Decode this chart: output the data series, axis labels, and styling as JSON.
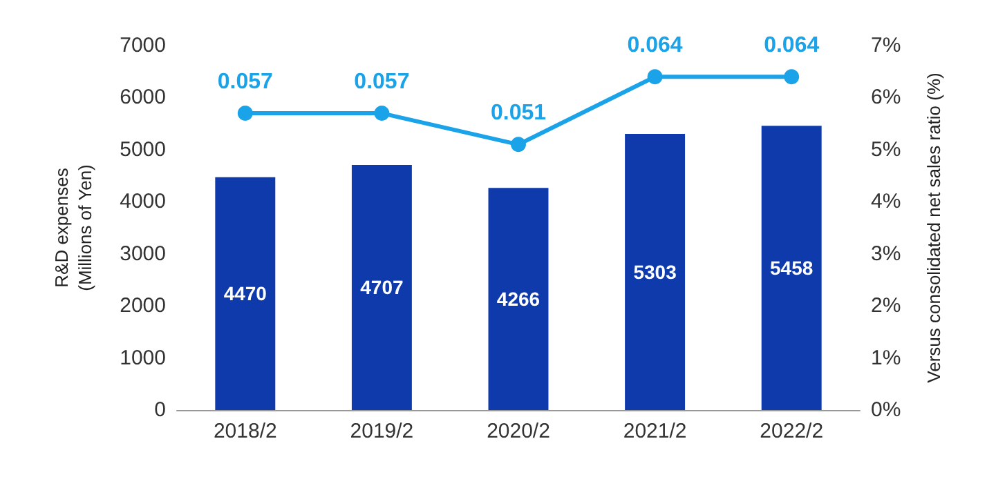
{
  "chart_data": {
    "type": "bar",
    "categories": [
      "2018/2",
      "2019/2",
      "2020/2",
      "2021/2",
      "2022/2"
    ],
    "ylabel": "R&D expenses\n(Millions of Yen)",
    "y2label": "Versus consolidated net sales ratio (%)",
    "ylim": [
      0,
      7000
    ],
    "yticks": [
      0,
      1000,
      2000,
      3000,
      4000,
      5000,
      6000,
      7000
    ],
    "y2lim": [
      0,
      0.07
    ],
    "y2ticks": [
      {
        "value": 0,
        "label": "0%"
      },
      {
        "value": 0.01,
        "label": "1%"
      },
      {
        "value": 0.02,
        "label": "2%"
      },
      {
        "value": 0.03,
        "label": "3%"
      },
      {
        "value": 0.04,
        "label": "4%"
      },
      {
        "value": 0.05,
        "label": "5%"
      },
      {
        "value": 0.06,
        "label": "6%"
      },
      {
        "value": 0.07,
        "label": "7%"
      }
    ],
    "grid": false,
    "series": [
      {
        "color": "#0f3aab",
        "values": [
          4470,
          4707,
          4266,
          5303,
          5458
        ],
        "value_labels": [
          "4470",
          "4707",
          "4266",
          "5303",
          "5458"
        ]
      },
      {
        "type": "line",
        "axis": "y2",
        "color": "#1aa3e8",
        "marker": "circle",
        "line_style": "solid",
        "values": [
          0.057,
          0.057,
          0.051,
          0.064,
          0.064
        ],
        "value_labels": [
          "0.057",
          "0.057",
          "0.051",
          "0.064",
          "0.064"
        ]
      }
    ]
  }
}
